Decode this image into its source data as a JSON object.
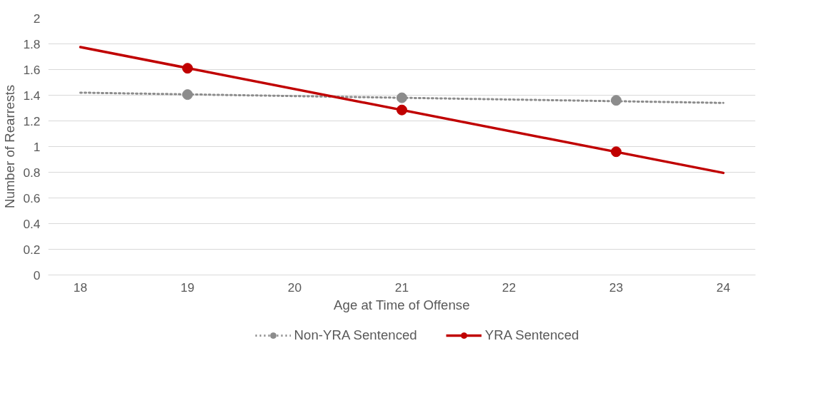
{
  "chart_data": {
    "type": "scatter",
    "xlabel": "Age at Time of Offense",
    "ylabel": "Number of Rearrests",
    "xlim": [
      17.7,
      24.3
    ],
    "xticks": [
      18,
      19,
      20,
      21,
      22,
      23,
      24
    ],
    "ylim": [
      0,
      2
    ],
    "yticks": [
      0,
      {
        "value": 0.2,
        "label": "0.2"
      },
      {
        "value": 0.4,
        "label": "0.4"
      },
      {
        "value": 0.6,
        "label": "0.6"
      },
      {
        "value": 0.8,
        "label": "0.8"
      },
      1,
      {
        "value": 1.2,
        "label": "1.2"
      },
      {
        "value": 1.4,
        "label": "1.4"
      },
      {
        "value": 1.6,
        "label": "1.6"
      },
      {
        "value": 1.8,
        "label": "1.8"
      },
      2
    ],
    "grid": "y",
    "legend": "bottom",
    "marker": "circle",
    "series": [
      {
        "name": "Non-YRA Sentenced",
        "color": "#8c8c8c",
        "x": [
          19,
          21,
          23
        ],
        "values": [
          1.405,
          1.38,
          1.36
        ]
      },
      {
        "name": "YRA Sentenced",
        "color": "#c00000",
        "x": [
          19,
          21,
          23
        ],
        "values": [
          1.61,
          1.285,
          0.96
        ]
      },
      {
        "type": "line",
        "marker": "none",
        "color": "#8c8c8c",
        "line_style": "dotted",
        "x": [
          18,
          24
        ],
        "values": [
          1.42,
          1.34
        ]
      },
      {
        "type": "line",
        "marker": "none",
        "color": "#c00000",
        "line_style": "solid",
        "x": [
          18,
          24
        ],
        "values": [
          1.775,
          0.795
        ]
      }
    ]
  }
}
